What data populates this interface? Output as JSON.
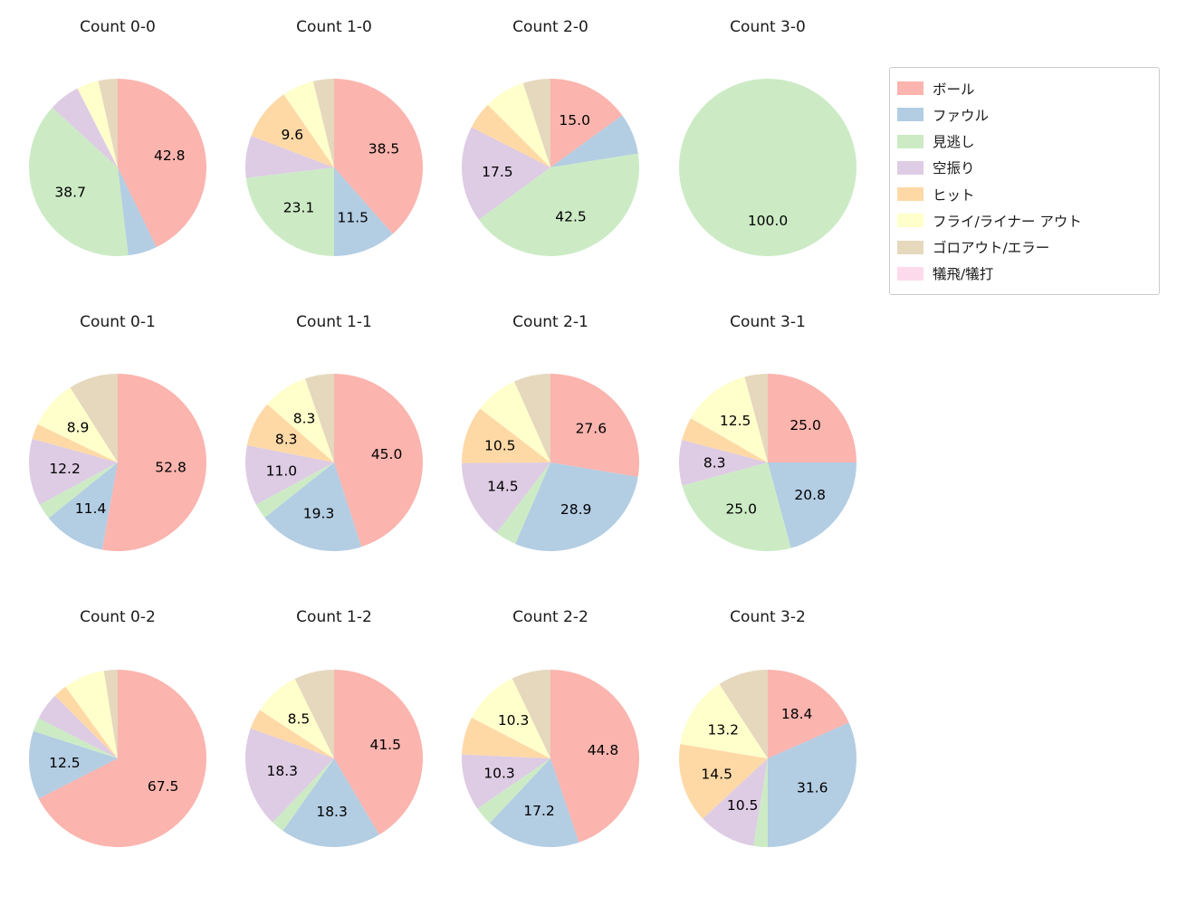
{
  "figure": {
    "background": "#ffffff"
  },
  "legend": {
    "position": "upper right",
    "items": [
      {
        "label": "ボール",
        "color": "#fbb4ae"
      },
      {
        "label": "ファウル",
        "color": "#b3cde3"
      },
      {
        "label": "見逃し",
        "color": "#ccebc5"
      },
      {
        "label": "空振り",
        "color": "#decbe4"
      },
      {
        "label": "ヒット",
        "color": "#fed9a6"
      },
      {
        "label": "フライ/ライナー アウト",
        "color": "#ffffcc"
      },
      {
        "label": "ゴロアウト/エラー",
        "color": "#e5d8bd"
      },
      {
        "label": "犠飛/犠打",
        "color": "#fddaec"
      }
    ]
  },
  "chart_data": {
    "type": "pie",
    "layout": "grid of 12 pies, 4 columns x 3 rows",
    "legend_position": "upper right",
    "value_format": "percent, one decimal",
    "categories": [
      "ボール",
      "ファウル",
      "見逃し",
      "空振り",
      "ヒット",
      "フライ/ライナー アウト",
      "ゴロアウト/エラー",
      "犠飛/犠打"
    ],
    "colors": {
      "ボール": "#fbb4ae",
      "ファウル": "#b3cde3",
      "見逃し": "#ccebc5",
      "空振り": "#decbe4",
      "ヒット": "#fed9a6",
      "フライ/ライナー アウト": "#ffffcc",
      "ゴロアウト/エラー": "#e5d8bd",
      "犠飛/犠打": "#fddaec"
    },
    "charts": [
      {
        "title": "Count 0-0",
        "slices": [
          {
            "name": "ボール",
            "value": 42.8,
            "label": "42.8"
          },
          {
            "name": "ファウル",
            "value": 5.3,
            "label": ""
          },
          {
            "name": "見逃し",
            "value": 38.7,
            "label": "38.7"
          },
          {
            "name": "空振り",
            "value": 5.7,
            "label": ""
          },
          {
            "name": "フライ/ライナー アウト",
            "value": 4.0,
            "label": ""
          },
          {
            "name": "ゴロアウト/エラー",
            "value": 3.5,
            "label": ""
          }
        ]
      },
      {
        "title": "Count 1-0",
        "slices": [
          {
            "name": "ボール",
            "value": 38.5,
            "label": "38.5"
          },
          {
            "name": "ファウル",
            "value": 11.5,
            "label": "11.5"
          },
          {
            "name": "見逃し",
            "value": 23.1,
            "label": "23.1"
          },
          {
            "name": "空振り",
            "value": 7.7,
            "label": ""
          },
          {
            "name": "ヒット",
            "value": 9.6,
            "label": "9.6"
          },
          {
            "name": "フライ/ライナー アウト",
            "value": 5.8,
            "label": ""
          },
          {
            "name": "ゴロアウト/エラー",
            "value": 3.8,
            "label": ""
          }
        ]
      },
      {
        "title": "Count 2-0",
        "slices": [
          {
            "name": "ボール",
            "value": 15.0,
            "label": "15.0"
          },
          {
            "name": "ファウル",
            "value": 7.5,
            "label": ""
          },
          {
            "name": "見逃し",
            "value": 42.5,
            "label": "42.5"
          },
          {
            "name": "空振り",
            "value": 17.5,
            "label": "17.5"
          },
          {
            "name": "ヒット",
            "value": 5.0,
            "label": ""
          },
          {
            "name": "フライ/ライナー アウト",
            "value": 7.5,
            "label": ""
          },
          {
            "name": "ゴロアウト/エラー",
            "value": 5.0,
            "label": ""
          }
        ]
      },
      {
        "title": "Count 3-0",
        "slices": [
          {
            "name": "見逃し",
            "value": 100.0,
            "label": "100.0"
          }
        ]
      },
      {
        "title": "Count 0-1",
        "slices": [
          {
            "name": "ボール",
            "value": 52.8,
            "label": "52.8"
          },
          {
            "name": "ファウル",
            "value": 11.4,
            "label": "11.4"
          },
          {
            "name": "見逃し",
            "value": 2.9,
            "label": ""
          },
          {
            "name": "空振り",
            "value": 12.2,
            "label": "12.2"
          },
          {
            "name": "ヒット",
            "value": 2.8,
            "label": ""
          },
          {
            "name": "フライ/ライナー アウト",
            "value": 8.9,
            "label": "8.9"
          },
          {
            "name": "ゴロアウト/エラー",
            "value": 9.0,
            "label": ""
          }
        ]
      },
      {
        "title": "Count 1-1",
        "slices": [
          {
            "name": "ボール",
            "value": 45.0,
            "label": "45.0"
          },
          {
            "name": "ファウル",
            "value": 19.3,
            "label": "19.3"
          },
          {
            "name": "見逃し",
            "value": 2.8,
            "label": ""
          },
          {
            "name": "空振り",
            "value": 11.0,
            "label": "11.0"
          },
          {
            "name": "ヒット",
            "value": 8.3,
            "label": "8.3"
          },
          {
            "name": "フライ/ライナー アウト",
            "value": 8.3,
            "label": "8.3"
          },
          {
            "name": "ゴロアウト/エラー",
            "value": 5.3,
            "label": ""
          }
        ]
      },
      {
        "title": "Count 2-1",
        "slices": [
          {
            "name": "ボール",
            "value": 27.6,
            "label": "27.6"
          },
          {
            "name": "ファウル",
            "value": 28.9,
            "label": "28.9"
          },
          {
            "name": "見逃し",
            "value": 3.9,
            "label": ""
          },
          {
            "name": "空振り",
            "value": 14.5,
            "label": "14.5"
          },
          {
            "name": "ヒット",
            "value": 10.5,
            "label": "10.5"
          },
          {
            "name": "フライ/ライナー アウト",
            "value": 7.9,
            "label": ""
          },
          {
            "name": "ゴロアウト/エラー",
            "value": 6.7,
            "label": ""
          }
        ]
      },
      {
        "title": "Count 3-1",
        "slices": [
          {
            "name": "ボール",
            "value": 25.0,
            "label": "25.0"
          },
          {
            "name": "ファウル",
            "value": 20.8,
            "label": "20.8"
          },
          {
            "name": "見逃し",
            "value": 25.0,
            "label": "25.0"
          },
          {
            "name": "空振り",
            "value": 8.3,
            "label": "8.3"
          },
          {
            "name": "ヒット",
            "value": 4.2,
            "label": ""
          },
          {
            "name": "フライ/ライナー アウト",
            "value": 12.5,
            "label": "12.5"
          },
          {
            "name": "ゴロアウト/エラー",
            "value": 4.2,
            "label": ""
          }
        ]
      },
      {
        "title": "Count 0-2",
        "slices": [
          {
            "name": "ボール",
            "value": 67.5,
            "label": "67.5"
          },
          {
            "name": "ファウル",
            "value": 12.5,
            "label": "12.5"
          },
          {
            "name": "見逃し",
            "value": 2.5,
            "label": ""
          },
          {
            "name": "空振り",
            "value": 5.0,
            "label": ""
          },
          {
            "name": "ヒット",
            "value": 2.5,
            "label": ""
          },
          {
            "name": "フライ/ライナー アウト",
            "value": 7.5,
            "label": ""
          },
          {
            "name": "ゴロアウト/エラー",
            "value": 2.5,
            "label": ""
          }
        ]
      },
      {
        "title": "Count 1-2",
        "slices": [
          {
            "name": "ボール",
            "value": 41.5,
            "label": "41.5"
          },
          {
            "name": "ファウル",
            "value": 18.3,
            "label": "18.3"
          },
          {
            "name": "見逃し",
            "value": 2.4,
            "label": ""
          },
          {
            "name": "空振り",
            "value": 18.3,
            "label": "18.3"
          },
          {
            "name": "ヒット",
            "value": 3.7,
            "label": ""
          },
          {
            "name": "フライ/ライナー アウト",
            "value": 8.5,
            "label": "8.5"
          },
          {
            "name": "ゴロアウト/エラー",
            "value": 7.3,
            "label": ""
          }
        ]
      },
      {
        "title": "Count 2-2",
        "slices": [
          {
            "name": "ボール",
            "value": 44.8,
            "label": "44.8"
          },
          {
            "name": "ファウル",
            "value": 17.2,
            "label": "17.2"
          },
          {
            "name": "見逃し",
            "value": 3.4,
            "label": ""
          },
          {
            "name": "空振り",
            "value": 10.3,
            "label": "10.3"
          },
          {
            "name": "ヒット",
            "value": 6.9,
            "label": ""
          },
          {
            "name": "フライ/ライナー アウト",
            "value": 10.3,
            "label": "10.3"
          },
          {
            "name": "ゴロアウト/エラー",
            "value": 7.1,
            "label": ""
          }
        ]
      },
      {
        "title": "Count 3-2",
        "slices": [
          {
            "name": "ボール",
            "value": 18.4,
            "label": "18.4"
          },
          {
            "name": "ファウル",
            "value": 31.6,
            "label": "31.6"
          },
          {
            "name": "見逃し",
            "value": 2.6,
            "label": ""
          },
          {
            "name": "空振り",
            "value": 10.5,
            "label": "10.5"
          },
          {
            "name": "ヒット",
            "value": 14.5,
            "label": "14.5"
          },
          {
            "name": "フライ/ライナー アウト",
            "value": 13.2,
            "label": "13.2"
          },
          {
            "name": "ゴロアウト/エラー",
            "value": 9.2,
            "label": ""
          }
        ]
      }
    ]
  }
}
